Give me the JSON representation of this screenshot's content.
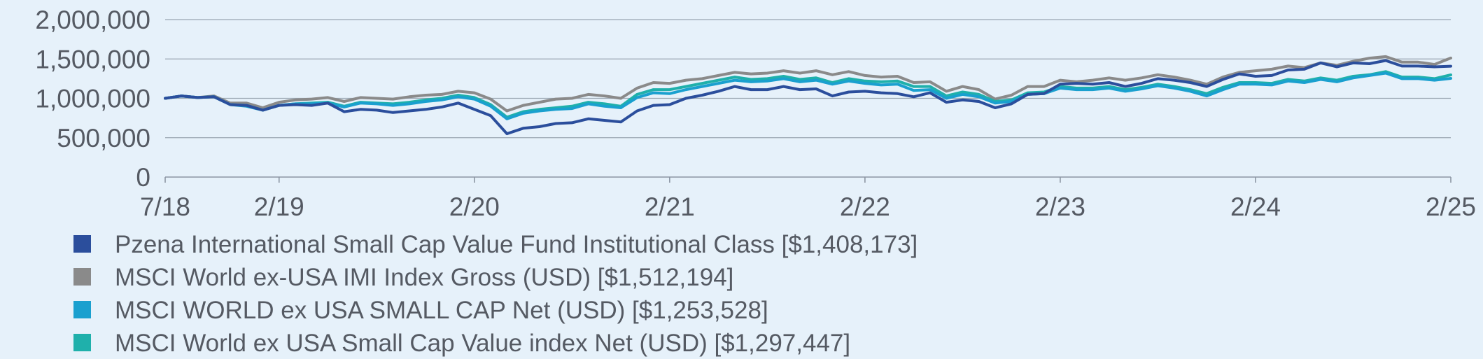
{
  "chart_data": {
    "type": "line",
    "title": "",
    "xlabel": "",
    "ylabel": "",
    "ylim": [
      0,
      2000000
    ],
    "y_ticks": [
      0,
      500000,
      1000000,
      1500000,
      2000000
    ],
    "y_tick_labels": [
      "0",
      "500,000",
      "1,000,000",
      "1,500,000",
      "2,000,000"
    ],
    "x_ticks": [
      "2018-07",
      "2019-02",
      "2020-02",
      "2021-02",
      "2022-02",
      "2023-02",
      "2024-02",
      "2025-02"
    ],
    "x_tick_labels": [
      "7/18",
      "2/19",
      "2/20",
      "2/21",
      "2/22",
      "2/23",
      "2/24",
      "2/25"
    ],
    "x": [
      "2018-07",
      "2018-08",
      "2018-09",
      "2018-10",
      "2018-11",
      "2018-12",
      "2019-01",
      "2019-02",
      "2019-03",
      "2019-04",
      "2019-05",
      "2019-06",
      "2019-07",
      "2019-08",
      "2019-09",
      "2019-10",
      "2019-11",
      "2019-12",
      "2020-01",
      "2020-02",
      "2020-03",
      "2020-04",
      "2020-05",
      "2020-06",
      "2020-07",
      "2020-08",
      "2020-09",
      "2020-10",
      "2020-11",
      "2020-12",
      "2021-01",
      "2021-02",
      "2021-03",
      "2021-04",
      "2021-05",
      "2021-06",
      "2021-07",
      "2021-08",
      "2021-09",
      "2021-10",
      "2021-11",
      "2021-12",
      "2022-01",
      "2022-02",
      "2022-03",
      "2022-04",
      "2022-05",
      "2022-06",
      "2022-07",
      "2022-08",
      "2022-09",
      "2022-10",
      "2022-11",
      "2022-12",
      "2023-01",
      "2023-02",
      "2023-03",
      "2023-04",
      "2023-05",
      "2023-06",
      "2023-07",
      "2023-08",
      "2023-09",
      "2023-10",
      "2023-11",
      "2023-12",
      "2024-01",
      "2024-02",
      "2024-03",
      "2024-04",
      "2024-05",
      "2024-06",
      "2024-07",
      "2024-08",
      "2024-09",
      "2024-10",
      "2024-11",
      "2024-12",
      "2025-01",
      "2025-02"
    ],
    "grid": "horizontal",
    "legend_position": "bottom",
    "series": [
      {
        "name": "Pzena International Small Cap Value Fund Institutional Class [$1,408,173]",
        "color": "#2b4e9c",
        "values": [
          1000000,
          1030000,
          1010000,
          1020000,
          920000,
          910000,
          850000,
          910000,
          920000,
          910000,
          940000,
          830000,
          860000,
          850000,
          820000,
          840000,
          860000,
          890000,
          940000,
          860000,
          780000,
          550000,
          620000,
          640000,
          680000,
          690000,
          740000,
          720000,
          700000,
          840000,
          910000,
          920000,
          1000000,
          1040000,
          1090000,
          1150000,
          1110000,
          1110000,
          1150000,
          1110000,
          1120000,
          1030000,
          1080000,
          1090000,
          1070000,
          1060000,
          1020000,
          1070000,
          950000,
          980000,
          960000,
          880000,
          930000,
          1050000,
          1060000,
          1180000,
          1190000,
          1180000,
          1200000,
          1150000,
          1190000,
          1250000,
          1230000,
          1200000,
          1150000,
          1240000,
          1310000,
          1280000,
          1290000,
          1360000,
          1370000,
          1450000,
          1400000,
          1450000,
          1440000,
          1480000,
          1410000,
          1410000,
          1400000,
          1408173
        ]
      },
      {
        "name": "MSCI World ex-USA IMI Index Gross (USD) [$1,512,194]",
        "color": "#8a8a8a",
        "values": [
          1000000,
          1030000,
          1010000,
          1030000,
          940000,
          940000,
          880000,
          950000,
          980000,
          990000,
          1010000,
          960000,
          1010000,
          1000000,
          990000,
          1020000,
          1040000,
          1050000,
          1090000,
          1070000,
          990000,
          840000,
          910000,
          950000,
          990000,
          1000000,
          1050000,
          1030000,
          1000000,
          1130000,
          1200000,
          1190000,
          1230000,
          1250000,
          1290000,
          1330000,
          1310000,
          1320000,
          1350000,
          1320000,
          1350000,
          1300000,
          1340000,
          1290000,
          1270000,
          1280000,
          1200000,
          1210000,
          1090000,
          1150000,
          1110000,
          990000,
          1040000,
          1150000,
          1150000,
          1230000,
          1210000,
          1230000,
          1260000,
          1230000,
          1260000,
          1300000,
          1270000,
          1230000,
          1180000,
          1270000,
          1330000,
          1350000,
          1370000,
          1410000,
          1390000,
          1450000,
          1420000,
          1470000,
          1510000,
          1530000,
          1460000,
          1460000,
          1430000,
          1512194
        ]
      },
      {
        "name": "MSCI WORLD ex USA SMALL CAP Net (USD) [$1,253,528]",
        "color": "#1aa0cf",
        "values": [
          1000000,
          1030000,
          1010000,
          1020000,
          920000,
          900000,
          850000,
          910000,
          930000,
          930000,
          940000,
          890000,
          940000,
          930000,
          910000,
          930000,
          960000,
          980000,
          1020000,
          990000,
          900000,
          740000,
          810000,
          840000,
          860000,
          870000,
          930000,
          900000,
          880000,
          1010000,
          1070000,
          1060000,
          1110000,
          1150000,
          1190000,
          1230000,
          1210000,
          1220000,
          1250000,
          1210000,
          1230000,
          1180000,
          1220000,
          1190000,
          1170000,
          1180000,
          1100000,
          1110000,
          1000000,
          1050000,
          1020000,
          940000,
          960000,
          1050000,
          1060000,
          1130000,
          1110000,
          1110000,
          1130000,
          1090000,
          1120000,
          1160000,
          1130000,
          1090000,
          1030000,
          1110000,
          1180000,
          1180000,
          1170000,
          1220000,
          1200000,
          1240000,
          1210000,
          1260000,
          1290000,
          1320000,
          1250000,
          1250000,
          1230000,
          1253528
        ]
      },
      {
        "name": "MSCI World ex USA Small Cap Value index Net (USD) [$1,297,447]",
        "color": "#1fb0ab",
        "values": [
          1000000,
          1030000,
          1010000,
          1020000,
          920000,
          910000,
          850000,
          910000,
          930000,
          940000,
          950000,
          900000,
          950000,
          940000,
          930000,
          950000,
          980000,
          1000000,
          1040000,
          1010000,
          920000,
          760000,
          830000,
          860000,
          880000,
          900000,
          950000,
          930000,
          900000,
          1050000,
          1110000,
          1110000,
          1150000,
          1190000,
          1230000,
          1270000,
          1240000,
          1250000,
          1280000,
          1240000,
          1260000,
          1200000,
          1250000,
          1220000,
          1210000,
          1220000,
          1150000,
          1150000,
          1030000,
          1080000,
          1050000,
          960000,
          980000,
          1070000,
          1080000,
          1150000,
          1130000,
          1130000,
          1150000,
          1110000,
          1140000,
          1180000,
          1150000,
          1110000,
          1060000,
          1140000,
          1200000,
          1200000,
          1190000,
          1240000,
          1220000,
          1260000,
          1230000,
          1280000,
          1300000,
          1340000,
          1270000,
          1270000,
          1250000,
          1297447
        ]
      }
    ]
  }
}
